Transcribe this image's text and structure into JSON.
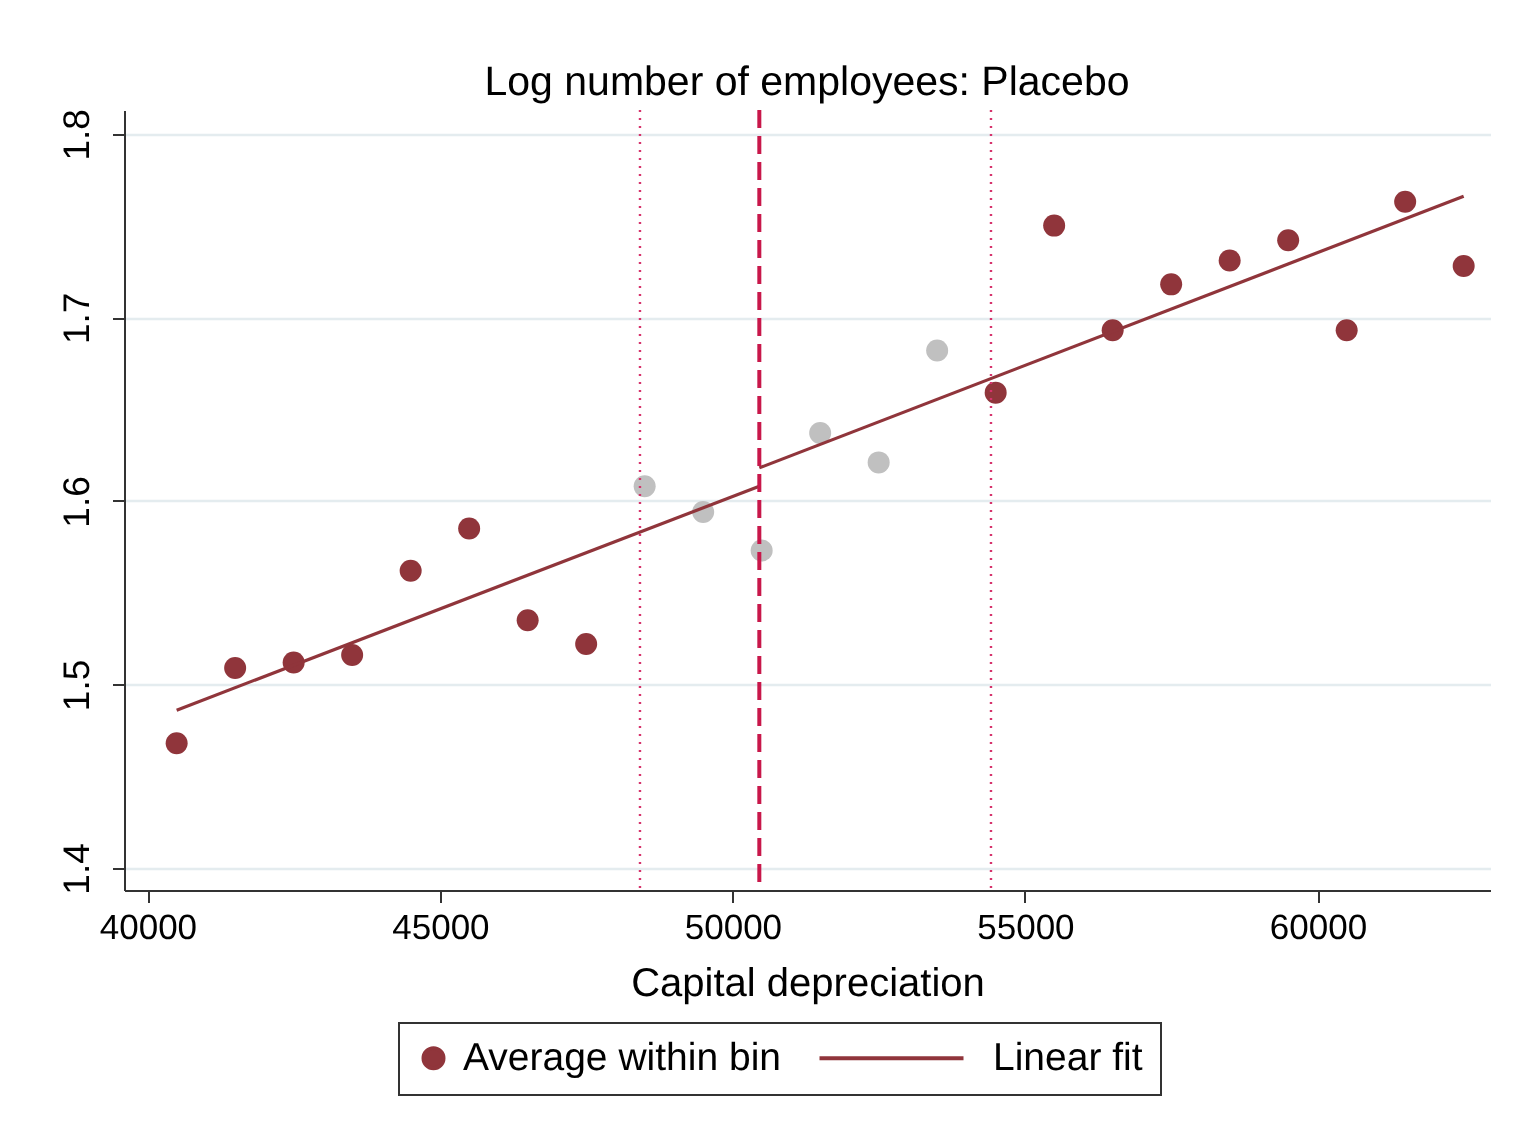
{
  "chart_data": {
    "type": "scatter",
    "title": "Log number of employees: Placebo",
    "xlabel": "Capital depreciation",
    "xlim": [
      39600,
      62950
    ],
    "xticks": [
      40000,
      45000,
      50000,
      55000,
      60000
    ],
    "ylim": [
      1.388,
      1.813
    ],
    "yticks": [
      1.4,
      1.5,
      1.6,
      1.7,
      1.8
    ],
    "grid": "y",
    "legend": "bottom",
    "series": [
      {
        "name": "Average within bin",
        "color": "#90353b",
        "marker": "circle",
        "x": [
          40500,
          41500,
          42500,
          43500,
          44500,
          45500,
          46500,
          47500,
          54500,
          55500,
          56500,
          57500,
          58500,
          59500,
          60500,
          61500,
          62500
        ],
        "values": [
          1.468,
          1.509,
          1.512,
          1.516,
          1.562,
          1.585,
          1.535,
          1.522,
          1.659,
          1.75,
          1.693,
          1.718,
          1.731,
          1.742,
          1.693,
          1.763,
          1.728
        ]
      },
      {
        "color": "#c0c0c0",
        "marker": "circle",
        "x": [
          48500,
          49500,
          50500,
          51500,
          52500,
          53500
        ],
        "values": [
          1.608,
          1.594,
          1.573,
          1.637,
          1.621,
          1.682
        ]
      },
      {
        "name": "Linear fit",
        "type": "line",
        "color": "#90353b",
        "line_style": "solid",
        "x": [
          40500,
          50460
        ],
        "values": [
          1.486,
          1.608
        ]
      },
      {
        "type": "line",
        "color": "#90353b",
        "line_style": "solid",
        "x": [
          50460,
          62500
        ],
        "values": [
          1.618,
          1.766
        ]
      }
    ],
    "ref_lines": [
      {
        "axis": "x",
        "value": 48420,
        "color": "#d6336c",
        "line_style": "dotted"
      },
      {
        "axis": "x",
        "value": 50460,
        "color": "#c8174a",
        "line_style": "dashed"
      },
      {
        "axis": "x",
        "value": 54420,
        "color": "#d6336c",
        "line_style": "dotted"
      }
    ]
  }
}
